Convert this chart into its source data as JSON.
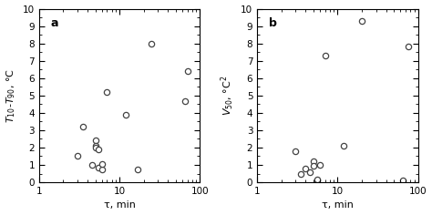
{
  "panel_a": {
    "label": "a",
    "xlabel": "τ, min",
    "xlim": [
      1,
      100
    ],
    "ylim": [
      0,
      10
    ],
    "yticks": [
      0,
      1,
      2,
      3,
      4,
      5,
      6,
      7,
      8,
      9,
      10
    ],
    "x": [
      3.0,
      3.5,
      4.5,
      5.0,
      5.0,
      5.0,
      5.5,
      5.5,
      6.0,
      6.0,
      7.0,
      12.0,
      17.0,
      25.0,
      65.0,
      70.0
    ],
    "y": [
      1.5,
      3.2,
      1.0,
      2.4,
      2.1,
      2.0,
      1.9,
      0.85,
      0.75,
      1.05,
      5.2,
      3.9,
      0.75,
      8.0,
      4.7,
      6.4
    ]
  },
  "panel_b": {
    "label": "b",
    "xlabel": "τ, min",
    "xlim": [
      1,
      100
    ],
    "ylim": [
      0,
      10
    ],
    "yticks": [
      0,
      1,
      2,
      3,
      4,
      5,
      6,
      7,
      8,
      9,
      10
    ],
    "x": [
      3.0,
      3.5,
      4.0,
      4.5,
      5.0,
      5.0,
      5.5,
      5.5,
      6.0,
      7.0,
      12.0,
      20.0,
      65.0,
      75.0
    ],
    "y": [
      1.8,
      0.45,
      0.8,
      0.6,
      1.2,
      0.95,
      0.1,
      0.15,
      1.0,
      7.3,
      2.1,
      9.3,
      0.1,
      7.8
    ]
  },
  "marker_size": 4.5,
  "marker_facecolor": "white",
  "marker_edgecolor": "#444444",
  "marker_linewidth": 0.9,
  "background_color": "#ffffff",
  "label_fontsize": 8,
  "tick_fontsize": 7.5,
  "panel_label_fontsize": 9
}
